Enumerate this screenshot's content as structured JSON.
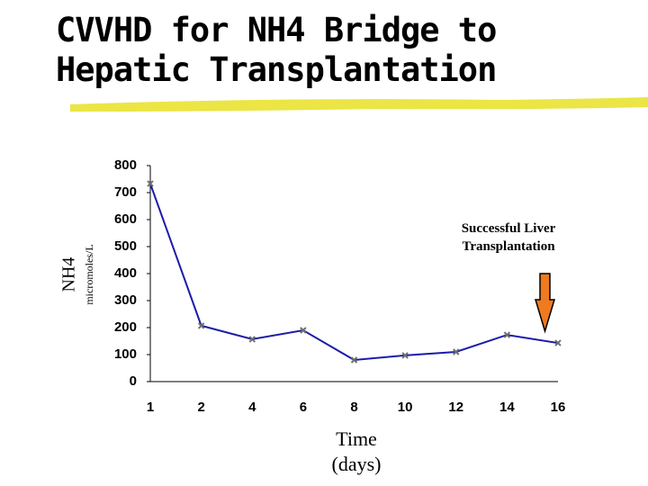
{
  "chart_data": {
    "type": "line",
    "title": "CVVHD for NH4 Bridge to\nHepatic Transplantation",
    "y_label": "NH4",
    "y_unit": "micromoles/L",
    "x_label": "Time\n(days)",
    "annotation": "Successful Liver\nTransplantation",
    "categories": [
      "1",
      "2",
      "4",
      "6",
      "8",
      "10",
      "12",
      "14",
      "16"
    ],
    "values": [
      733,
      207,
      157,
      190,
      80,
      97,
      110,
      173,
      143
    ],
    "color": "#1c1caa",
    "marker_color": "#6e6e6e",
    "ylim": [
      0,
      800
    ],
    "yticks": [
      0,
      100,
      200,
      300,
      400,
      500,
      600,
      700,
      800
    ],
    "grid": false
  }
}
